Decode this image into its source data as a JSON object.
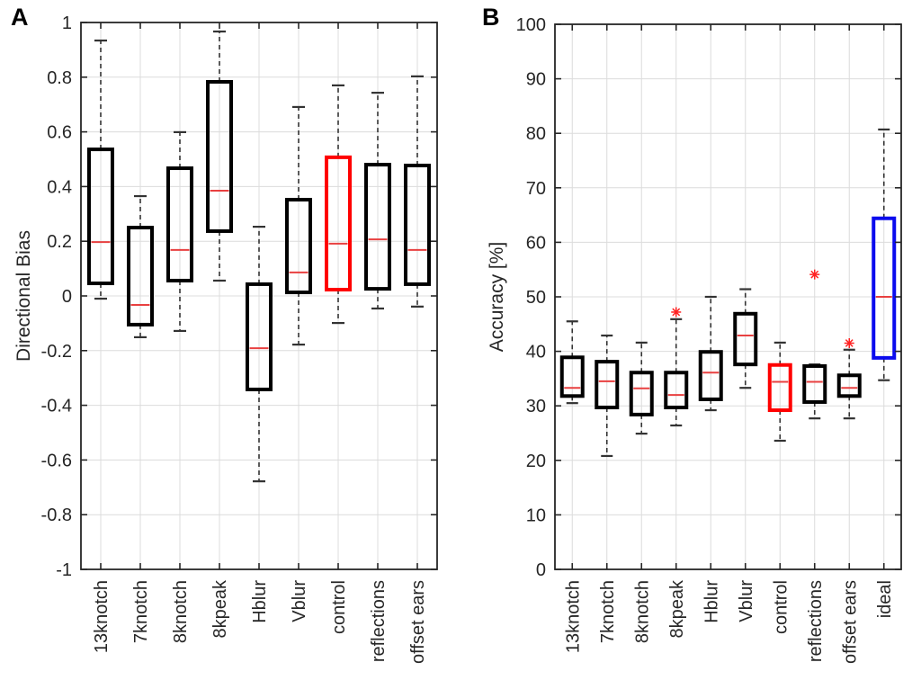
{
  "figure": {
    "background": "#ffffff"
  },
  "colors": {
    "box_black": "#000000",
    "box_red": "#ff0000",
    "box_blue": "#0b0bee",
    "median_red": "#e84040",
    "outlier_red": "#ff2222",
    "whisker": "#333333",
    "grid": "#dcdcdc",
    "axis": "#262626",
    "text": "#262626"
  },
  "chart_data": [
    {
      "type": "boxplot",
      "panel_label": "A",
      "ylabel": "Directional Bias",
      "ylim": [
        -1,
        1
      ],
      "grid": true,
      "legend": "none",
      "yticks": [
        {
          "v": 1,
          "label": "1"
        },
        {
          "v": 0.8,
          "label": "0.8"
        },
        {
          "v": 0.6,
          "label": "0.6"
        },
        {
          "v": 0.4,
          "label": "0.4"
        },
        {
          "v": 0.2,
          "label": "0.2"
        },
        {
          "v": 0,
          "label": "0"
        },
        {
          "v": -0.2,
          "label": "-0.2"
        },
        {
          "v": -0.4,
          "label": "-0.4"
        },
        {
          "v": -0.6,
          "label": "-0.6"
        },
        {
          "v": -0.8,
          "label": "-0.8"
        },
        {
          "v": -1,
          "label": "-1"
        }
      ],
      "categories": [
        "13knotch",
        "7knotch",
        "8knotch",
        "8kpeak",
        "Hblur",
        "Vblur",
        "control",
        "reflections",
        "offset ears"
      ],
      "boxes": [
        {
          "category": "13knotch",
          "whisker_low": -0.01,
          "q1": 0.046,
          "median": 0.197,
          "q3": 0.536,
          "whisker_high": 0.934,
          "color": "black",
          "outliers": []
        },
        {
          "category": "7knotch",
          "whisker_low": -0.151,
          "q1": -0.105,
          "median": -0.033,
          "q3": 0.25,
          "whisker_high": 0.365,
          "color": "black",
          "outliers": []
        },
        {
          "category": "8knotch",
          "whisker_low": -0.128,
          "q1": 0.056,
          "median": 0.168,
          "q3": 0.467,
          "whisker_high": 0.599,
          "color": "black",
          "outliers": []
        },
        {
          "category": "8kpeak",
          "whisker_low": 0.056,
          "q1": 0.237,
          "median": 0.385,
          "q3": 0.783,
          "whisker_high": 0.967,
          "color": "black",
          "outliers": []
        },
        {
          "category": "Hblur",
          "whisker_low": -0.678,
          "q1": -0.342,
          "median": -0.191,
          "q3": 0.043,
          "whisker_high": 0.253,
          "color": "black",
          "outliers": []
        },
        {
          "category": "Vblur",
          "whisker_low": -0.178,
          "q1": 0.013,
          "median": 0.086,
          "q3": 0.352,
          "whisker_high": 0.691,
          "color": "black",
          "outliers": []
        },
        {
          "category": "control",
          "whisker_low": -0.099,
          "q1": 0.023,
          "median": 0.191,
          "q3": 0.507,
          "whisker_high": 0.77,
          "color": "red",
          "outliers": []
        },
        {
          "category": "reflections",
          "whisker_low": -0.046,
          "q1": 0.026,
          "median": 0.207,
          "q3": 0.48,
          "whisker_high": 0.743,
          "color": "black",
          "outliers": []
        },
        {
          "category": "offset ears",
          "whisker_low": -0.039,
          "q1": 0.043,
          "median": 0.168,
          "q3": 0.477,
          "whisker_high": 0.803,
          "color": "black",
          "outliers": []
        }
      ]
    },
    {
      "type": "boxplot",
      "panel_label": "B",
      "ylabel": "Accuracy [%]",
      "ylim": [
        0,
        100
      ],
      "grid": true,
      "legend": "none",
      "yticks": [
        {
          "v": 100,
          "label": "100"
        },
        {
          "v": 90,
          "label": "90"
        },
        {
          "v": 80,
          "label": "80"
        },
        {
          "v": 70,
          "label": "70"
        },
        {
          "v": 60,
          "label": "60"
        },
        {
          "v": 50,
          "label": "50"
        },
        {
          "v": 40,
          "label": "40"
        },
        {
          "v": 30,
          "label": "30"
        },
        {
          "v": 20,
          "label": "20"
        },
        {
          "v": 10,
          "label": "10"
        },
        {
          "v": 0,
          "label": "0"
        }
      ],
      "categories": [
        "13knotch",
        "7knotch",
        "8knotch",
        "8kpeak",
        "Hblur",
        "Vblur",
        "control",
        "reflections",
        "offset ears",
        "ideal"
      ],
      "boxes": [
        {
          "category": "13knotch",
          "whisker_low": 30.5,
          "q1": 31.8,
          "median": 33.3,
          "q3": 38.9,
          "whisker_high": 45.5,
          "color": "black",
          "outliers": []
        },
        {
          "category": "7knotch",
          "whisker_low": 20.8,
          "q1": 29.7,
          "median": 34.5,
          "q3": 38.1,
          "whisker_high": 42.9,
          "color": "black",
          "outliers": []
        },
        {
          "category": "8knotch",
          "whisker_low": 24.9,
          "q1": 28.4,
          "median": 33.2,
          "q3": 36.1,
          "whisker_high": 41.6,
          "color": "black",
          "outliers": []
        },
        {
          "category": "8kpeak",
          "whisker_low": 26.4,
          "q1": 29.7,
          "median": 32.0,
          "q3": 36.1,
          "whisker_high": 45.9,
          "color": "black",
          "outliers": [
            47.2
          ]
        },
        {
          "category": "Hblur",
          "whisker_low": 29.2,
          "q1": 31.2,
          "median": 36.1,
          "q3": 39.9,
          "whisker_high": 50.0,
          "color": "black",
          "outliers": []
        },
        {
          "category": "Vblur",
          "whisker_low": 33.3,
          "q1": 37.6,
          "median": 42.9,
          "q3": 46.9,
          "whisker_high": 51.4,
          "color": "black",
          "outliers": []
        },
        {
          "category": "control",
          "whisker_low": 23.6,
          "q1": 29.2,
          "median": 34.4,
          "q3": 37.5,
          "whisker_high": 41.6,
          "color": "red",
          "outliers": []
        },
        {
          "category": "reflections",
          "whisker_low": 27.7,
          "q1": 30.7,
          "median": 34.4,
          "q3": 37.3,
          "whisker_high": 37.6,
          "color": "black",
          "outliers": [
            54.1
          ]
        },
        {
          "category": "offset ears",
          "whisker_low": 27.7,
          "q1": 31.8,
          "median": 33.3,
          "q3": 35.6,
          "whisker_high": 40.3,
          "color": "black",
          "outliers": [
            41.5
          ]
        },
        {
          "category": "ideal",
          "whisker_low": 34.7,
          "q1": 38.8,
          "median": 50.0,
          "q3": 64.4,
          "whisker_high": 80.7,
          "color": "blue",
          "outliers": []
        }
      ]
    }
  ]
}
